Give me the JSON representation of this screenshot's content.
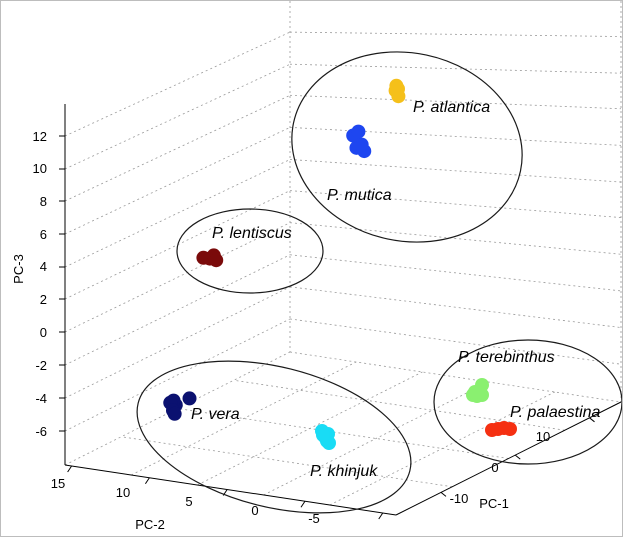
{
  "chart_data": {
    "type": "scatter",
    "dimensions": 3,
    "xlabel": "PC-1",
    "ylabel": "PC-2",
    "zlabel": "PC-3",
    "x_ticks": [
      "-10",
      "0",
      "10"
    ],
    "y_ticks": [
      "15",
      "10",
      "5",
      "0",
      "-5"
    ],
    "z_ticks": [
      "12",
      "10",
      "8",
      "6",
      "4",
      "2",
      "0",
      "-2",
      "-4",
      "-6"
    ],
    "grid": true,
    "clusters": [
      {
        "labels": [
          "P. atlantica",
          "P. mutica"
        ]
      },
      {
        "labels": [
          "P. lentiscus"
        ]
      },
      {
        "labels": [
          "P. vera",
          "P. khinjuk"
        ]
      },
      {
        "labels": [
          "P. terebinthus",
          "P. palaestina"
        ]
      }
    ],
    "series": [
      {
        "name": "P. atlantica",
        "color": "#f5c01a",
        "points": [
          [
            0,
            0
          ],
          [
            0.05,
            0.9
          ],
          [
            -0.2,
            -0.4
          ],
          [
            -0.3,
            0.2
          ]
        ]
      },
      {
        "name": "P. mutica",
        "color": "#1e46f0",
        "points": [
          [
            -0.35,
            0.45
          ],
          [
            0.25,
            0.7
          ],
          [
            0.05,
            0.2
          ],
          [
            -0.6,
            -0.5
          ],
          [
            -0.2,
            -0.8
          ]
        ]
      },
      {
        "name": "P. lentiscus",
        "color": "#7a0a0a",
        "points": [
          [
            -0.7,
            0.1
          ],
          [
            0.1,
            0.2
          ],
          [
            0.6,
            -0.2
          ],
          [
            0.9,
            0.4
          ]
        ]
      },
      {
        "name": "P. vera",
        "color": "#0b1170",
        "points": [
          [
            0.25,
            0.0
          ],
          [
            0.05,
            -0.4
          ],
          [
            -0.25,
            -0.2
          ],
          [
            0.0,
            0.5
          ],
          [
            0.15,
            0.8
          ],
          [
            1.5,
            -0.6
          ]
        ]
      },
      {
        "name": "P. khinjuk",
        "color": "#19dcf5",
        "points": [
          [
            -0.3,
            -0.3
          ],
          [
            0.3,
            0.0
          ],
          [
            0.0,
            0.3
          ],
          [
            0.2,
            0.7
          ],
          [
            0.4,
            0.9
          ],
          [
            -0.2,
            0.1
          ]
        ]
      },
      {
        "name": "P. terebinthus",
        "color": "#8af070",
        "points": [
          [
            0.6,
            -0.8
          ],
          [
            0.3,
            0.0
          ],
          [
            -0.3,
            0.2
          ],
          [
            0.1,
            0.3
          ],
          [
            0.6,
            0.2
          ],
          [
            -0.1,
            -0.1
          ]
        ]
      },
      {
        "name": "P. palaestina",
        "color": "#f53012",
        "points": [
          [
            -0.7,
            0.2
          ],
          [
            -0.1,
            0.1
          ],
          [
            0.5,
            0.0
          ],
          [
            1.1,
            0.1
          ]
        ]
      }
    ]
  }
}
